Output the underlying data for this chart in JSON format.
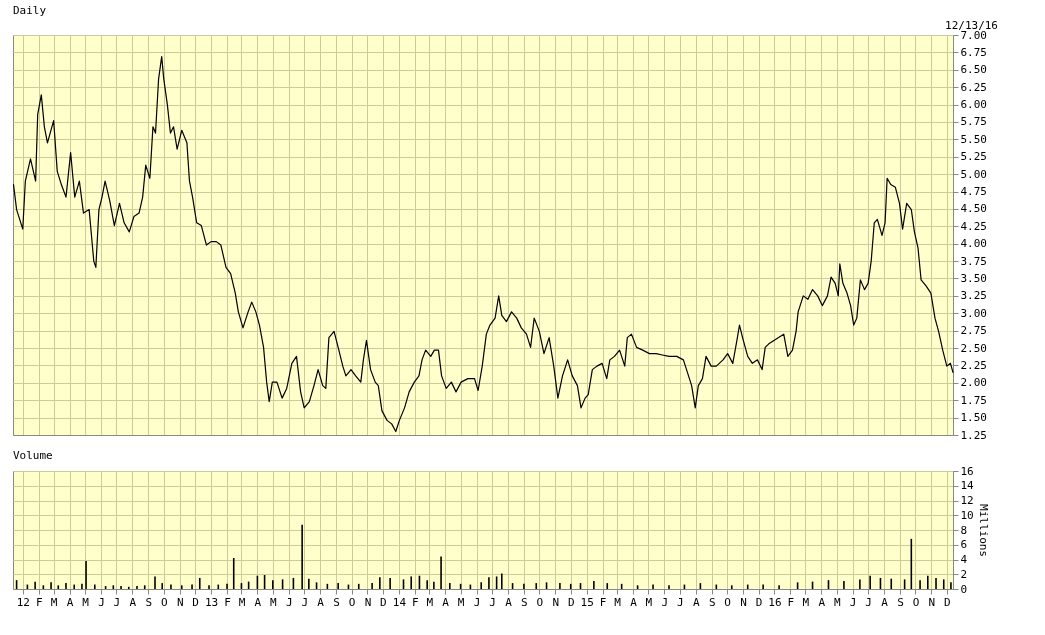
{
  "chart_data": [
    {
      "type": "line",
      "title": "Daily",
      "annotations": [
        "12/13/16"
      ],
      "x": [
        "2011-12-14",
        "2011-12-20",
        "2012-01-01",
        "2012-01-06",
        "2012-01-16",
        "2012-01-26",
        "2012-01-30",
        "2012-02-06",
        "2012-02-12",
        "2012-02-18",
        "2012-03-01",
        "2012-03-08",
        "2012-03-16",
        "2012-03-25",
        "2012-04-03",
        "2012-04-11",
        "2012-04-20",
        "2012-04-28",
        "2012-05-09",
        "2012-05-18",
        "2012-05-22",
        "2012-05-28",
        "2012-06-03",
        "2012-06-09",
        "2012-06-18",
        "2012-06-27",
        "2012-07-07",
        "2012-07-16",
        "2012-07-26",
        "2012-08-04",
        "2012-08-14",
        "2012-08-21",
        "2012-08-27",
        "2012-09-04",
        "2012-09-10",
        "2012-09-15",
        "2012-09-21",
        "2012-09-27",
        "2012-10-01",
        "2012-10-08",
        "2012-10-14",
        "2012-10-20",
        "2012-10-27",
        "2012-11-05",
        "2012-11-15",
        "2012-11-20",
        "2012-11-26",
        "2012-12-04",
        "2012-12-13",
        "2012-12-23",
        "2013-01-01",
        "2013-01-11",
        "2013-01-20",
        "2013-01-30",
        "2013-02-08",
        "2013-02-17",
        "2013-02-23",
        "2013-03-04",
        "2013-03-14",
        "2013-03-21",
        "2013-03-29",
        "2013-04-05",
        "2013-04-13",
        "2013-04-19",
        "2013-04-24",
        "2013-04-30",
        "2013-05-09",
        "2013-05-19",
        "2013-05-28",
        "2013-06-07",
        "2013-06-16",
        "2013-06-24",
        "2013-07-01",
        "2013-07-11",
        "2013-07-20",
        "2013-07-28",
        "2013-08-06",
        "2013-08-12",
        "2013-08-18",
        "2013-08-28",
        "2013-09-05",
        "2013-09-14",
        "2013-09-20",
        "2013-09-30",
        "2013-10-09",
        "2013-10-19",
        "2013-10-24",
        "2013-10-30",
        "2013-11-07",
        "2013-11-16",
        "2013-11-22",
        "2013-11-29",
        "2013-12-09",
        "2013-12-18",
        "2013-12-26",
        "2014-01-02",
        "2014-01-12",
        "2014-01-21",
        "2014-01-31",
        "2014-02-09",
        "2014-02-15",
        "2014-02-22",
        "2014-03-04",
        "2014-03-11",
        "2014-03-19",
        "2014-03-25",
        "2014-04-03",
        "2014-04-13",
        "2014-04-22",
        "2014-05-02",
        "2014-05-15",
        "2014-05-28",
        "2014-06-04",
        "2014-06-12",
        "2014-06-20",
        "2014-06-27",
        "2014-07-07",
        "2014-07-14",
        "2014-07-20",
        "2014-07-29",
        "2014-08-08",
        "2014-08-18",
        "2014-08-27",
        "2014-09-06",
        "2014-09-14",
        "2014-09-21",
        "2014-10-01",
        "2014-10-10",
        "2014-10-20",
        "2014-10-29",
        "2014-11-06",
        "2014-11-15",
        "2014-11-25",
        "2014-12-04",
        "2014-12-14",
        "2014-12-21",
        "2014-12-29",
        "2015-01-04",
        "2015-01-12",
        "2015-01-21",
        "2015-01-31",
        "2015-02-09",
        "2015-02-15",
        "2015-02-24",
        "2015-03-06",
        "2015-03-16",
        "2015-03-21",
        "2015-03-29",
        "2015-04-08",
        "2015-04-20",
        "2015-05-03",
        "2015-05-16",
        "2015-05-28",
        "2015-06-10",
        "2015-06-25",
        "2015-07-08",
        "2015-07-18",
        "2015-07-24",
        "2015-07-31",
        "2015-08-06",
        "2015-08-14",
        "2015-08-21",
        "2015-08-31",
        "2015-09-10",
        "2015-09-23",
        "2015-10-02",
        "2015-10-12",
        "2015-10-20",
        "2015-10-25",
        "2015-10-31",
        "2015-11-10",
        "2015-11-19",
        "2015-11-29",
        "2015-12-08",
        "2015-12-14",
        "2015-12-21",
        "2015-12-31",
        "2016-01-09",
        "2016-01-19",
        "2016-01-27",
        "2016-02-05",
        "2016-02-12",
        "2016-02-16",
        "2016-02-26",
        "2016-03-06",
        "2016-03-15",
        "2016-03-25",
        "2016-04-03",
        "2016-04-13",
        "2016-04-20",
        "2016-04-28",
        "2016-05-04",
        "2016-05-07",
        "2016-05-13",
        "2016-05-21",
        "2016-05-28",
        "2016-06-03",
        "2016-06-09",
        "2016-06-16",
        "2016-06-24",
        "2016-07-01",
        "2016-07-07",
        "2016-07-13",
        "2016-07-19",
        "2016-07-28",
        "2016-08-03",
        "2016-08-07",
        "2016-08-14",
        "2016-08-23",
        "2016-08-31",
        "2016-09-06",
        "2016-09-14",
        "2016-09-23",
        "2016-09-29",
        "2016-10-06",
        "2016-10-12",
        "2016-10-22",
        "2016-10-31",
        "2016-11-08",
        "2016-11-15",
        "2016-11-23",
        "2016-12-01",
        "2016-12-08",
        "2016-12-13"
      ],
      "series": [
        {
          "color": "#000000",
          "values": [
            4.85,
            4.49,
            4.21,
            4.9,
            5.22,
            4.9,
            5.86,
            6.14,
            5.68,
            5.45,
            5.77,
            5.04,
            4.85,
            4.67,
            5.31,
            4.67,
            4.9,
            4.44,
            4.49,
            3.75,
            3.66,
            4.49,
            4.67,
            4.9,
            4.62,
            4.26,
            4.58,
            4.3,
            4.17,
            4.39,
            4.44,
            4.67,
            5.13,
            4.94,
            5.68,
            5.59,
            6.37,
            6.69,
            6.37,
            6.0,
            5.59,
            5.68,
            5.36,
            5.63,
            5.45,
            4.9,
            4.67,
            4.3,
            4.26,
            3.98,
            4.03,
            4.03,
            3.98,
            3.66,
            3.57,
            3.29,
            3.02,
            2.79,
            3.02,
            3.16,
            3.02,
            2.83,
            2.51,
            2.01,
            1.73,
            2.01,
            2.01,
            1.78,
            1.92,
            2.28,
            2.38,
            1.87,
            1.64,
            1.73,
            1.96,
            2.19,
            1.96,
            1.92,
            2.65,
            2.74,
            2.51,
            2.24,
            2.1,
            2.19,
            2.1,
            2.01,
            2.33,
            2.61,
            2.19,
            2.01,
            1.96,
            1.6,
            1.46,
            1.41,
            1.3,
            1.46,
            1.64,
            1.87,
            2.01,
            2.1,
            2.33,
            2.47,
            2.38,
            2.47,
            2.47,
            2.1,
            1.92,
            2.01,
            1.87,
            2.01,
            2.06,
            2.06,
            1.89,
            2.24,
            2.7,
            2.83,
            2.93,
            3.25,
            2.97,
            2.88,
            3.02,
            2.93,
            2.79,
            2.7,
            2.51,
            2.93,
            2.74,
            2.42,
            2.65,
            2.24,
            1.78,
            2.1,
            2.33,
            2.1,
            1.96,
            1.64,
            1.78,
            1.83,
            2.19,
            2.24,
            2.28,
            2.06,
            2.33,
            2.38,
            2.47,
            2.24,
            2.65,
            2.7,
            2.51,
            2.47,
            2.42,
            2.42,
            2.4,
            2.38,
            2.38,
            2.33,
            2.1,
            1.96,
            1.64,
            1.96,
            2.06,
            2.38,
            2.24,
            2.24,
            2.33,
            2.42,
            2.28,
            2.61,
            2.83,
            2.65,
            2.38,
            2.28,
            2.33,
            2.19,
            2.51,
            2.56,
            2.61,
            2.65,
            2.7,
            2.38,
            2.47,
            2.74,
            3.02,
            3.25,
            3.2,
            3.34,
            3.25,
            3.11,
            3.25,
            3.52,
            3.43,
            3.25,
            3.71,
            3.43,
            3.29,
            3.11,
            2.83,
            2.93,
            3.48,
            3.34,
            3.43,
            3.75,
            4.3,
            4.35,
            4.12,
            4.3,
            4.94,
            4.85,
            4.81,
            4.58,
            4.21,
            4.58,
            4.49,
            4.17,
            3.94,
            3.48,
            3.39,
            3.29,
            2.93,
            2.74,
            2.47,
            2.24,
            2.28,
            2.15
          ]
        }
      ],
      "xlim": [
        "2011-12-13",
        "2016-12-13"
      ],
      "xticks": [
        {
          "value": "2012-01-01",
          "label": null
        },
        {
          "value": "2012-02-01",
          "label": null
        },
        {
          "value": "2012-03-01",
          "label": null
        },
        {
          "value": "2012-04-01",
          "label": null
        },
        {
          "value": "2012-05-01",
          "label": null
        },
        {
          "value": "2012-06-01",
          "label": null
        },
        {
          "value": "2012-07-01",
          "label": null
        },
        {
          "value": "2012-08-01",
          "label": null
        },
        {
          "value": "2012-09-01",
          "label": null
        },
        {
          "value": "2012-10-01",
          "label": null
        },
        {
          "value": "2012-11-01",
          "label": null
        },
        {
          "value": "2012-12-01",
          "label": null
        },
        {
          "value": "2013-01-01",
          "label": null
        },
        {
          "value": "2013-02-01",
          "label": null
        },
        {
          "value": "2013-03-01",
          "label": null
        },
        {
          "value": "2013-04-01",
          "label": null
        },
        {
          "value": "2013-05-01",
          "label": null
        },
        {
          "value": "2013-06-01",
          "label": null
        },
        {
          "value": "2013-07-01",
          "label": null
        },
        {
          "value": "2013-08-01",
          "label": null
        },
        {
          "value": "2013-09-01",
          "label": null
        },
        {
          "value": "2013-10-01",
          "label": null
        },
        {
          "value": "2013-11-01",
          "label": null
        },
        {
          "value": "2013-12-01",
          "label": null
        },
        {
          "value": "2014-01-01",
          "label": null
        },
        {
          "value": "2014-02-01",
          "label": null
        },
        {
          "value": "2014-03-01",
          "label": null
        },
        {
          "value": "2014-04-01",
          "label": null
        },
        {
          "value": "2014-05-01",
          "label": null
        },
        {
          "value": "2014-06-01",
          "label": null
        },
        {
          "value": "2014-07-01",
          "label": null
        },
        {
          "value": "2014-08-01",
          "label": null
        },
        {
          "value": "2014-09-01",
          "label": null
        },
        {
          "value": "2014-10-01",
          "label": null
        },
        {
          "value": "2014-11-01",
          "label": null
        },
        {
          "value": "2014-12-01",
          "label": null
        },
        {
          "value": "2015-01-01",
          "label": null
        },
        {
          "value": "2015-02-01",
          "label": null
        },
        {
          "value": "2015-03-01",
          "label": null
        },
        {
          "value": "2015-04-01",
          "label": null
        },
        {
          "value": "2015-05-01",
          "label": null
        },
        {
          "value": "2015-06-01",
          "label": null
        },
        {
          "value": "2015-07-01",
          "label": null
        },
        {
          "value": "2015-08-01",
          "label": null
        },
        {
          "value": "2015-09-01",
          "label": null
        },
        {
          "value": "2015-10-01",
          "label": null
        },
        {
          "value": "2015-11-01",
          "label": null
        },
        {
          "value": "2015-12-01",
          "label": null
        },
        {
          "value": "2016-01-01",
          "label": null
        },
        {
          "value": "2016-02-01",
          "label": null
        },
        {
          "value": "2016-03-01",
          "label": null
        },
        {
          "value": "2016-04-01",
          "label": null
        },
        {
          "value": "2016-05-01",
          "label": null
        },
        {
          "value": "2016-06-01",
          "label": null
        },
        {
          "value": "2016-07-01",
          "label": null
        },
        {
          "value": "2016-08-01",
          "label": null
        },
        {
          "value": "2016-09-01",
          "label": null
        },
        {
          "value": "2016-10-01",
          "label": null
        },
        {
          "value": "2016-11-01",
          "label": null
        },
        {
          "value": "2016-12-01",
          "label": null
        }
      ],
      "ylim": [
        1.25,
        7
      ],
      "yticks": [
        {
          "value": 1.25,
          "label": "1.25"
        },
        {
          "value": 1.5,
          "label": "1.50"
        },
        {
          "value": 1.75,
          "label": "1.75"
        },
        {
          "value": 2,
          "label": "2.00"
        },
        {
          "value": 2.25,
          "label": "2.25"
        },
        {
          "value": 2.5,
          "label": "2.50"
        },
        {
          "value": 2.75,
          "label": "2.75"
        },
        {
          "value": 3,
          "label": "3.00"
        },
        {
          "value": 3.25,
          "label": "3.25"
        },
        {
          "value": 3.5,
          "label": "3.50"
        },
        {
          "value": 3.75,
          "label": "3.75"
        },
        {
          "value": 4,
          "label": "4.00"
        },
        {
          "value": 4.25,
          "label": "4.25"
        },
        {
          "value": 4.5,
          "label": "4.50"
        },
        {
          "value": 4.75,
          "label": "4.75"
        },
        {
          "value": 5,
          "label": "5.00"
        },
        {
          "value": 5.25,
          "label": "5.25"
        },
        {
          "value": 5.5,
          "label": "5.50"
        },
        {
          "value": 5.75,
          "label": "5.75"
        },
        {
          "value": 6,
          "label": "6.00"
        },
        {
          "value": 6.25,
          "label": "6.25"
        },
        {
          "value": 6.5,
          "label": "6.50"
        },
        {
          "value": 6.75,
          "label": "6.75"
        },
        {
          "value": 7,
          "label": "7.00"
        }
      ],
      "grid": true,
      "tick_labels": "y"
    },
    {
      "type": "bar",
      "title": "Volume",
      "ylabel": "Millions",
      "x": [
        "2011-12-20",
        "2012-01-10",
        "2012-01-25",
        "2012-02-10",
        "2012-02-25",
        "2012-03-10",
        "2012-03-25",
        "2012-04-10",
        "2012-04-25",
        "2012-05-03",
        "2012-05-20",
        "2012-06-10",
        "2012-06-25",
        "2012-07-10",
        "2012-07-25",
        "2012-08-10",
        "2012-08-25",
        "2012-09-14",
        "2012-09-28",
        "2012-10-15",
        "2012-11-05",
        "2012-11-25",
        "2012-12-10",
        "2012-12-28",
        "2013-01-15",
        "2013-02-01",
        "2013-02-14",
        "2013-03-01",
        "2013-03-15",
        "2013-04-01",
        "2013-04-15",
        "2013-05-01",
        "2013-05-20",
        "2013-06-10",
        "2013-06-27",
        "2013-07-10",
        "2013-07-25",
        "2013-08-15",
        "2013-09-05",
        "2013-09-25",
        "2013-10-15",
        "2013-11-10",
        "2013-11-25",
        "2013-12-15",
        "2014-01-10",
        "2014-01-25",
        "2014-02-10",
        "2014-02-25",
        "2014-03-10",
        "2014-03-24",
        "2014-04-10",
        "2014-05-01",
        "2014-05-20",
        "2014-06-10",
        "2014-06-25",
        "2014-07-10",
        "2014-07-20",
        "2014-08-10",
        "2014-09-01",
        "2014-09-25",
        "2014-10-15",
        "2014-11-10",
        "2014-12-01",
        "2014-12-20",
        "2015-01-15",
        "2015-02-10",
        "2015-03-10",
        "2015-04-10",
        "2015-05-10",
        "2015-06-10",
        "2015-07-10",
        "2015-08-10",
        "2015-09-10",
        "2015-10-10",
        "2015-11-10",
        "2015-12-10",
        "2016-01-10",
        "2016-02-15",
        "2016-03-15",
        "2016-04-15",
        "2016-05-15",
        "2016-06-15",
        "2016-07-05",
        "2016-07-25",
        "2016-08-15",
        "2016-09-10",
        "2016-09-23",
        "2016-10-10",
        "2016-10-25",
        "2016-11-10",
        "2016-11-25",
        "2016-12-09"
      ],
      "series": [
        {
          "color": "#000000",
          "values": [
            1.2,
            0.6,
            1.0,
            0.5,
            0.9,
            0.5,
            0.8,
            0.6,
            0.7,
            3.8,
            0.6,
            0.4,
            0.5,
            0.4,
            0.3,
            0.4,
            0.5,
            1.7,
            0.8,
            0.6,
            0.5,
            0.6,
            1.5,
            0.5,
            0.6,
            0.7,
            4.2,
            0.8,
            1.0,
            1.8,
            1.9,
            1.2,
            1.3,
            1.5,
            8.7,
            1.4,
            0.9,
            0.7,
            0.8,
            0.6,
            0.7,
            0.8,
            1.6,
            1.5,
            1.3,
            1.7,
            1.8,
            1.2,
            1.0,
            4.4,
            0.8,
            0.7,
            0.6,
            0.9,
            1.6,
            1.7,
            2.1,
            0.8,
            0.7,
            0.8,
            0.9,
            0.8,
            0.7,
            0.8,
            1.1,
            0.8,
            0.7,
            0.5,
            0.6,
            0.5,
            0.6,
            0.8,
            0.6,
            0.5,
            0.6,
            0.6,
            0.5,
            0.9,
            1.0,
            1.2,
            1.1,
            1.3,
            1.8,
            1.5,
            1.4,
            1.3,
            6.8,
            1.2,
            1.8,
            1.5,
            1.3,
            0.9
          ]
        }
      ],
      "xlim": [
        "2011-12-13",
        "2016-12-13"
      ],
      "xticks": [
        {
          "value": "2012-01-01",
          "label": "12"
        },
        {
          "value": "2012-02-01",
          "label": "F"
        },
        {
          "value": "2012-03-01",
          "label": "M"
        },
        {
          "value": "2012-04-01",
          "label": "A"
        },
        {
          "value": "2012-05-01",
          "label": "M"
        },
        {
          "value": "2012-06-01",
          "label": "J"
        },
        {
          "value": "2012-07-01",
          "label": "J"
        },
        {
          "value": "2012-08-01",
          "label": "A"
        },
        {
          "value": "2012-09-01",
          "label": "S"
        },
        {
          "value": "2012-10-01",
          "label": "O"
        },
        {
          "value": "2012-11-01",
          "label": "N"
        },
        {
          "value": "2012-12-01",
          "label": "D"
        },
        {
          "value": "2013-01-01",
          "label": "13"
        },
        {
          "value": "2013-02-01",
          "label": "F"
        },
        {
          "value": "2013-03-01",
          "label": "M"
        },
        {
          "value": "2013-04-01",
          "label": "A"
        },
        {
          "value": "2013-05-01",
          "label": "M"
        },
        {
          "value": "2013-06-01",
          "label": "J"
        },
        {
          "value": "2013-07-01",
          "label": "J"
        },
        {
          "value": "2013-08-01",
          "label": "A"
        },
        {
          "value": "2013-09-01",
          "label": "S"
        },
        {
          "value": "2013-10-01",
          "label": "O"
        },
        {
          "value": "2013-11-01",
          "label": "N"
        },
        {
          "value": "2013-12-01",
          "label": "D"
        },
        {
          "value": "2014-01-01",
          "label": "14"
        },
        {
          "value": "2014-02-01",
          "label": "F"
        },
        {
          "value": "2014-03-01",
          "label": "M"
        },
        {
          "value": "2014-04-01",
          "label": "A"
        },
        {
          "value": "2014-05-01",
          "label": "M"
        },
        {
          "value": "2014-06-01",
          "label": "J"
        },
        {
          "value": "2014-07-01",
          "label": "J"
        },
        {
          "value": "2014-08-01",
          "label": "A"
        },
        {
          "value": "2014-09-01",
          "label": "S"
        },
        {
          "value": "2014-10-01",
          "label": "O"
        },
        {
          "value": "2014-11-01",
          "label": "N"
        },
        {
          "value": "2014-12-01",
          "label": "D"
        },
        {
          "value": "2015-01-01",
          "label": "15"
        },
        {
          "value": "2015-02-01",
          "label": "F"
        },
        {
          "value": "2015-03-01",
          "label": "M"
        },
        {
          "value": "2015-04-01",
          "label": "A"
        },
        {
          "value": "2015-05-01",
          "label": "M"
        },
        {
          "value": "2015-06-01",
          "label": "J"
        },
        {
          "value": "2015-07-01",
          "label": "J"
        },
        {
          "value": "2015-08-01",
          "label": "A"
        },
        {
          "value": "2015-09-01",
          "label": "S"
        },
        {
          "value": "2015-10-01",
          "label": "O"
        },
        {
          "value": "2015-11-01",
          "label": "N"
        },
        {
          "value": "2015-12-01",
          "label": "D"
        },
        {
          "value": "2016-01-01",
          "label": "16"
        },
        {
          "value": "2016-02-01",
          "label": "F"
        },
        {
          "value": "2016-03-01",
          "label": "M"
        },
        {
          "value": "2016-04-01",
          "label": "A"
        },
        {
          "value": "2016-05-01",
          "label": "M"
        },
        {
          "value": "2016-06-01",
          "label": "J"
        },
        {
          "value": "2016-07-01",
          "label": "J"
        },
        {
          "value": "2016-08-01",
          "label": "A"
        },
        {
          "value": "2016-09-01",
          "label": "S"
        },
        {
          "value": "2016-10-01",
          "label": "O"
        },
        {
          "value": "2016-11-01",
          "label": "N"
        },
        {
          "value": "2016-12-01",
          "label": "D"
        }
      ],
      "ylim": [
        0,
        16
      ],
      "yticks": [
        0,
        2,
        4,
        6,
        8,
        10,
        12,
        14,
        16
      ],
      "grid": true
    }
  ]
}
